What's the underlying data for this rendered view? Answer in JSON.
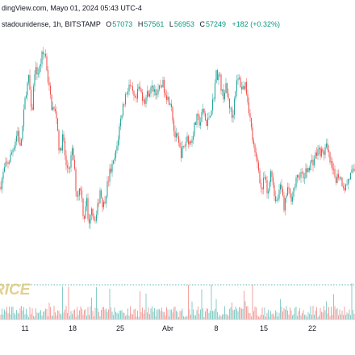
{
  "header": {
    "line1": "dingView.com, Mayo 01, 2024 05:43 UTC-4",
    "line2": "stadounidense, 1h, BITSTAMP",
    "open_label": "O",
    "open_value": "57073",
    "high_label": "H",
    "high_value": "57561",
    "low_label": "L",
    "low_value": "56953",
    "close_label": "C",
    "close_value": "57249",
    "change": "+182 (+0.32%)"
  },
  "watermark": "RICE",
  "colors": {
    "up": "#26a69a",
    "down": "#ef5350",
    "text": "#131722",
    "grid": "#e0e3eb",
    "ohlc": "#089981"
  },
  "chart_data": {
    "type": "candlestick",
    "interval": "1h",
    "exchange": "BITSTAMP",
    "x_tick_labels": [
      "11",
      "18",
      "25",
      "Abr",
      "8",
      "15",
      "22"
    ],
    "price_series": [
      {
        "t": 0,
        "p": 62000
      },
      {
        "t": 6,
        "p": 63600
      },
      {
        "t": 12,
        "p": 64300
      },
      {
        "t": 18,
        "p": 65700
      },
      {
        "t": 22,
        "p": 66700
      },
      {
        "t": 25,
        "p": 65200
      },
      {
        "t": 28,
        "p": 67000
      },
      {
        "t": 32,
        "p": 70000
      },
      {
        "t": 36,
        "p": 71200
      },
      {
        "t": 39,
        "p": 67700
      },
      {
        "t": 43,
        "p": 71800
      },
      {
        "t": 48,
        "p": 71600
      },
      {
        "t": 52,
        "p": 73000
      },
      {
        "t": 56,
        "p": 73300
      },
      {
        "t": 60,
        "p": 70700
      },
      {
        "t": 64,
        "p": 68800
      },
      {
        "t": 70,
        "p": 68000
      },
      {
        "t": 74,
        "p": 64600
      },
      {
        "t": 78,
        "p": 66400
      },
      {
        "t": 82,
        "p": 63600
      },
      {
        "t": 86,
        "p": 63700
      },
      {
        "t": 90,
        "p": 65100
      },
      {
        "t": 95,
        "p": 61200
      },
      {
        "t": 100,
        "p": 62000
      },
      {
        "t": 104,
        "p": 59200
      },
      {
        "t": 107,
        "p": 61300
      },
      {
        "t": 110,
        "p": 58300
      },
      {
        "t": 113,
        "p": 60800
      },
      {
        "t": 116,
        "p": 59300
      },
      {
        "t": 120,
        "p": 59700
      },
      {
        "t": 124,
        "p": 61800
      },
      {
        "t": 128,
        "p": 60300
      },
      {
        "t": 132,
        "p": 61800
      },
      {
        "t": 136,
        "p": 63200
      },
      {
        "t": 140,
        "p": 63800
      },
      {
        "t": 144,
        "p": 64900
      },
      {
        "t": 148,
        "p": 67000
      },
      {
        "t": 152,
        "p": 68700
      },
      {
        "t": 156,
        "p": 69800
      },
      {
        "t": 160,
        "p": 70600
      },
      {
        "t": 164,
        "p": 69800
      },
      {
        "t": 168,
        "p": 69000
      },
      {
        "t": 172,
        "p": 70300
      },
      {
        "t": 176,
        "p": 69700
      },
      {
        "t": 180,
        "p": 69300
      },
      {
        "t": 184,
        "p": 70000
      },
      {
        "t": 190,
        "p": 70300
      },
      {
        "t": 196,
        "p": 69800
      },
      {
        "t": 200,
        "p": 70800
      },
      {
        "t": 204,
        "p": 70300
      },
      {
        "t": 208,
        "p": 69400
      },
      {
        "t": 212,
        "p": 69300
      },
      {
        "t": 216,
        "p": 66400
      },
      {
        "t": 220,
        "p": 65900
      },
      {
        "t": 224,
        "p": 64800
      },
      {
        "t": 228,
        "p": 65300
      },
      {
        "t": 232,
        "p": 66200
      },
      {
        "t": 236,
        "p": 65600
      },
      {
        "t": 240,
        "p": 66800
      },
      {
        "t": 244,
        "p": 67700
      },
      {
        "t": 248,
        "p": 67400
      },
      {
        "t": 252,
        "p": 68500
      },
      {
        "t": 256,
        "p": 67100
      },
      {
        "t": 260,
        "p": 68200
      },
      {
        "t": 264,
        "p": 69200
      },
      {
        "t": 268,
        "p": 71500
      },
      {
        "t": 272,
        "p": 71300
      },
      {
        "t": 276,
        "p": 69600
      },
      {
        "t": 280,
        "p": 70300
      },
      {
        "t": 284,
        "p": 69000
      },
      {
        "t": 288,
        "p": 67700
      },
      {
        "t": 292,
        "p": 70400
      },
      {
        "t": 296,
        "p": 71100
      },
      {
        "t": 300,
        "p": 70200
      },
      {
        "t": 304,
        "p": 70700
      },
      {
        "t": 308,
        "p": 68900
      },
      {
        "t": 312,
        "p": 66500
      },
      {
        "t": 316,
        "p": 64600
      },
      {
        "t": 320,
        "p": 63800
      },
      {
        "t": 324,
        "p": 61600
      },
      {
        "t": 328,
        "p": 62800
      },
      {
        "t": 332,
        "p": 61000
      },
      {
        "t": 336,
        "p": 63800
      },
      {
        "t": 340,
        "p": 61300
      },
      {
        "t": 344,
        "p": 60800
      },
      {
        "t": 348,
        "p": 62800
      },
      {
        "t": 352,
        "p": 59800
      },
      {
        "t": 356,
        "p": 62000
      },
      {
        "t": 360,
        "p": 61000
      },
      {
        "t": 364,
        "p": 61800
      },
      {
        "t": 368,
        "p": 62600
      },
      {
        "t": 372,
        "p": 63200
      },
      {
        "t": 376,
        "p": 62700
      },
      {
        "t": 380,
        "p": 63300
      },
      {
        "t": 384,
        "p": 63900
      },
      {
        "t": 388,
        "p": 64200
      },
      {
        "t": 392,
        "p": 64800
      },
      {
        "t": 396,
        "p": 65100
      },
      {
        "t": 400,
        "p": 64700
      },
      {
        "t": 404,
        "p": 65400
      },
      {
        "t": 408,
        "p": 64400
      },
      {
        "t": 412,
        "p": 63300
      },
      {
        "t": 416,
        "p": 62700
      },
      {
        "t": 420,
        "p": 63100
      },
      {
        "t": 424,
        "p": 62400
      },
      {
        "t": 428,
        "p": 61900
      },
      {
        "t": 432,
        "p": 62700
      },
      {
        "t": 436,
        "p": 63100
      },
      {
        "t": 440,
        "p": 63400
      }
    ],
    "volume_dotted_reference": true,
    "grid": false,
    "legend": "none"
  }
}
